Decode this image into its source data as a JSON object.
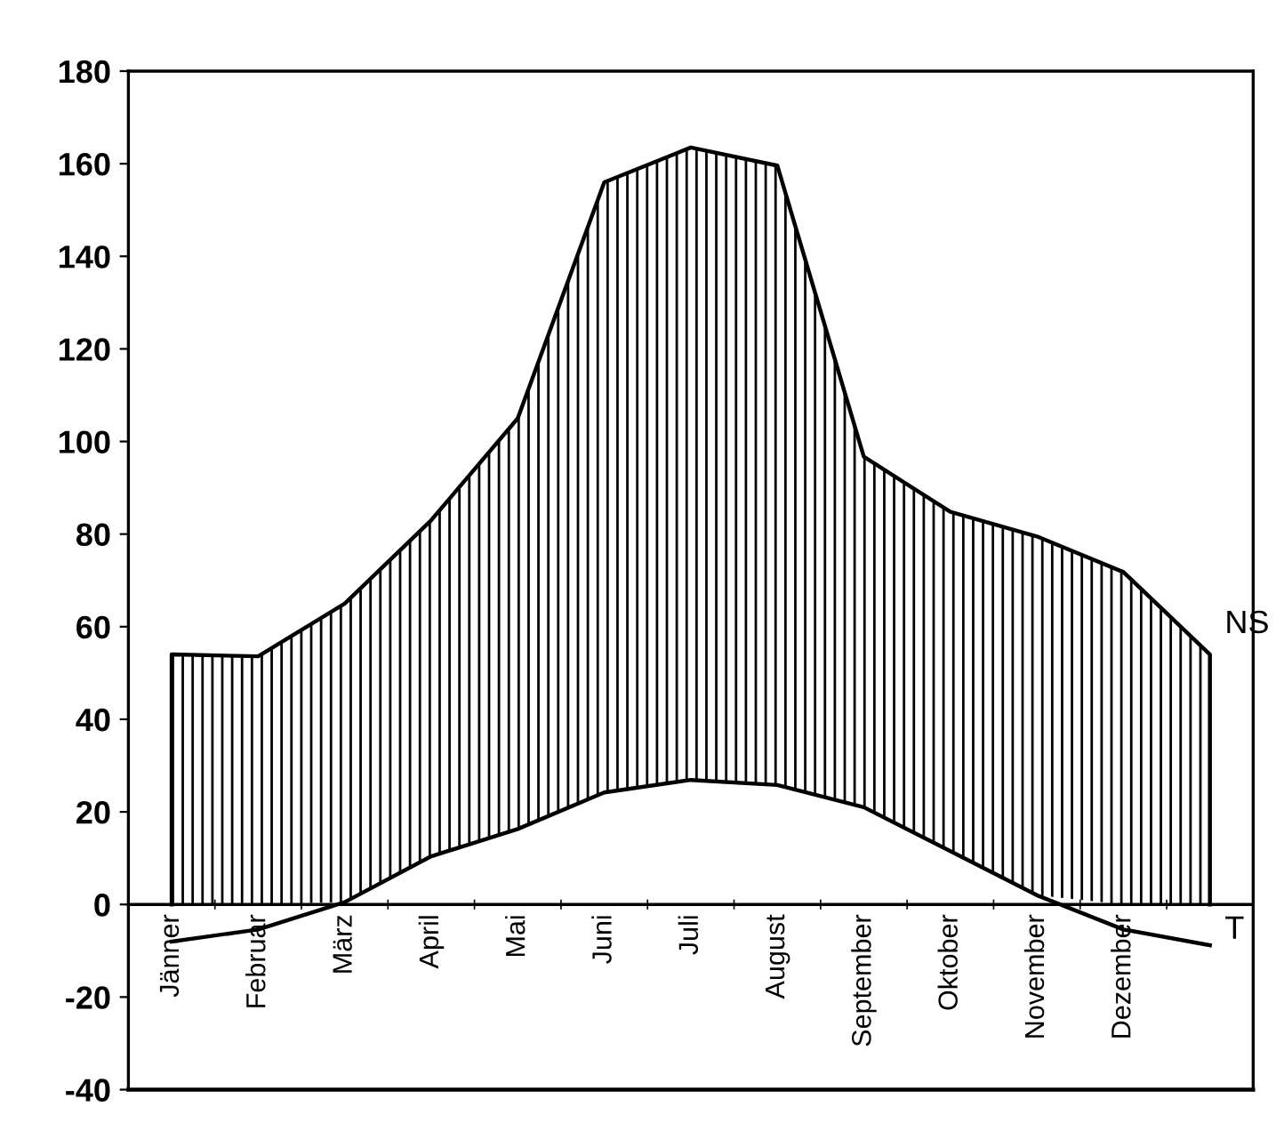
{
  "chart_data": {
    "type": "area",
    "categories": [
      "Jänner",
      "Februar",
      "März",
      "April",
      "Mai",
      "Juni",
      "Juli",
      "August",
      "September",
      "Oktober",
      "November",
      "Dezember",
      null
    ],
    "series": [
      {
        "name": "NS",
        "color": "#000000",
        "values": [
          54,
          53.6,
          65,
          83,
          105,
          156,
          163.5,
          159.6,
          96.7,
          84.8,
          79.5,
          71.8,
          54
        ]
      },
      {
        "name": "T",
        "type": "line",
        "color": "#000000",
        "values": [
          -8,
          -5.4,
          0.5,
          10.4,
          16.3,
          24.2,
          26.9,
          25.8,
          21,
          11.5,
          2,
          -5.4,
          -8.8
        ]
      }
    ],
    "ylim": [
      -40,
      180
    ],
    "yticks": [
      -40,
      -20,
      0,
      20,
      40,
      60,
      80,
      100,
      120,
      140,
      160,
      180
    ],
    "grid": false,
    "legend": false,
    "marker": "none",
    "line_style": "solid"
  }
}
